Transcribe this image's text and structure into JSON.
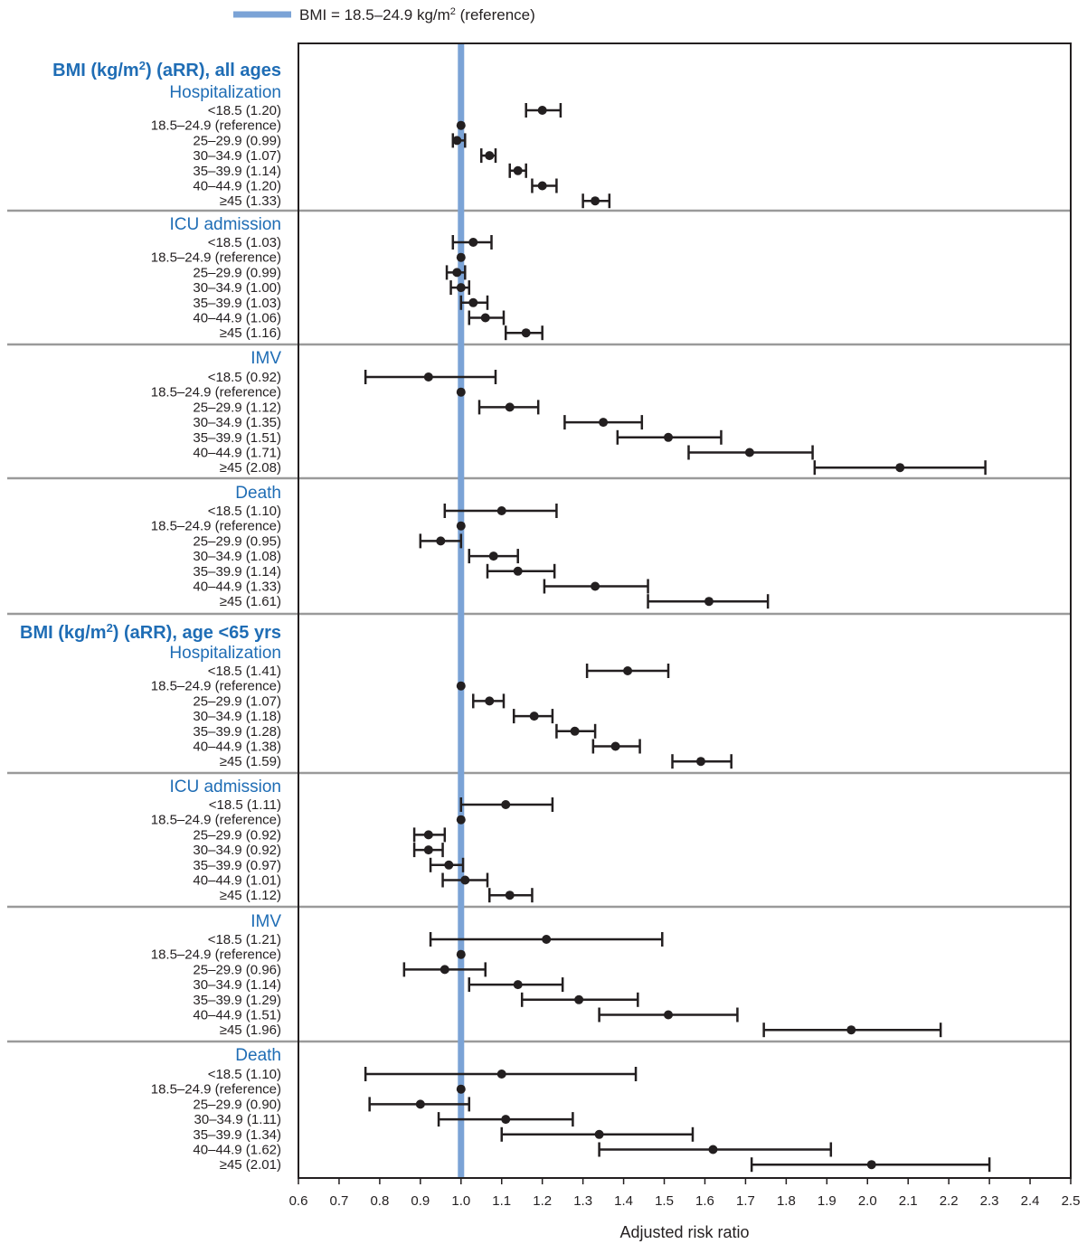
{
  "colors": {
    "reference_line": "#7ba3d6",
    "panel_heading": "#1f6db5",
    "separator": "#9a9a9a",
    "marker": "#231f20"
  },
  "legend": {
    "line_label_main": "BMI = 18.5–24.9 kg/m",
    "line_label_sup": "2",
    "line_label_end": " (reference)"
  },
  "chart_data": {
    "type": "scatter",
    "subtype": "forest-plot",
    "xlabel": "Adjusted risk ratio",
    "xlim": [
      0.6,
      2.5
    ],
    "x_ticks": [
      "0.6",
      "0.7",
      "0.8",
      "0.9",
      "1.0",
      "1.1",
      "1.2",
      "1.3",
      "1.4",
      "1.5",
      "1.6",
      "1.7",
      "1.8",
      "1.9",
      "2.0",
      "2.1",
      "2.2",
      "2.3",
      "2.4",
      "2.5"
    ],
    "reference_value": 1.0,
    "groups": [
      {
        "title_main": "BMI (kg/m",
        "title_sup": "2",
        "title_end": ") (aRR), all ages",
        "outcomes": [
          {
            "name": "Hospitalization",
            "rows": [
              {
                "label": "<18.5 (1.20)",
                "est": 1.2,
                "lo": 1.16,
                "hi": 1.245
              },
              {
                "label": "18.5–24.9 (reference)",
                "est": 1.0,
                "lo": 1.0,
                "hi": 1.0
              },
              {
                "label": "25–29.9 (0.99)",
                "est": 0.99,
                "lo": 0.98,
                "hi": 1.01
              },
              {
                "label": "30–34.9 (1.07)",
                "est": 1.07,
                "lo": 1.05,
                "hi": 1.085
              },
              {
                "label": "35–39.9 (1.14)",
                "est": 1.14,
                "lo": 1.12,
                "hi": 1.16
              },
              {
                "label": "40–44.9 (1.20)",
                "est": 1.2,
                "lo": 1.175,
                "hi": 1.235
              },
              {
                "label": "≥45 (1.33)",
                "est": 1.33,
                "lo": 1.3,
                "hi": 1.365
              }
            ]
          },
          {
            "name": "ICU admission",
            "rows": [
              {
                "label": "<18.5 (1.03)",
                "est": 1.03,
                "lo": 0.98,
                "hi": 1.075
              },
              {
                "label": "18.5–24.9 (reference)",
                "est": 1.0,
                "lo": 1.0,
                "hi": 1.0
              },
              {
                "label": "25–29.9 (0.99)",
                "est": 0.99,
                "lo": 0.965,
                "hi": 1.01
              },
              {
                "label": "30–34.9 (1.00)",
                "est": 1.0,
                "lo": 0.975,
                "hi": 1.02
              },
              {
                "label": "35–39.9 (1.03)",
                "est": 1.03,
                "lo": 1.0,
                "hi": 1.065
              },
              {
                "label": "40–44.9 (1.06)",
                "est": 1.06,
                "lo": 1.02,
                "hi": 1.105
              },
              {
                "label": "≥45 (1.16)",
                "est": 1.16,
                "lo": 1.11,
                "hi": 1.2
              }
            ]
          },
          {
            "name": "IMV",
            "rows": [
              {
                "label": "<18.5 (0.92)",
                "est": 0.92,
                "lo": 0.765,
                "hi": 1.085
              },
              {
                "label": "18.5–24.9 (reference)",
                "est": 1.0,
                "lo": 1.0,
                "hi": 1.0
              },
              {
                "label": "25–29.9 (1.12)",
                "est": 1.12,
                "lo": 1.045,
                "hi": 1.19
              },
              {
                "label": "30–34.9 (1.35)",
                "est": 1.35,
                "lo": 1.255,
                "hi": 1.445
              },
              {
                "label": "35–39.9 (1.51)",
                "est": 1.51,
                "lo": 1.385,
                "hi": 1.64
              },
              {
                "label": "40–44.9 (1.71)",
                "est": 1.71,
                "lo": 1.56,
                "hi": 1.865
              },
              {
                "label": "≥45 (2.08)",
                "est": 2.08,
                "lo": 1.87,
                "hi": 2.29
              }
            ]
          },
          {
            "name": "Death",
            "rows": [
              {
                "label": "<18.5 (1.10)",
                "est": 1.1,
                "lo": 0.96,
                "hi": 1.235
              },
              {
                "label": "18.5–24.9 (reference)",
                "est": 1.0,
                "lo": 1.0,
                "hi": 1.0
              },
              {
                "label": "25–29.9 (0.95)",
                "est": 0.95,
                "lo": 0.9,
                "hi": 1.0
              },
              {
                "label": "30–34.9 (1.08)",
                "est": 1.08,
                "lo": 1.02,
                "hi": 1.14
              },
              {
                "label": "35–39.9 (1.14)",
                "est": 1.14,
                "lo": 1.065,
                "hi": 1.23
              },
              {
                "label": "40–44.9 (1.33)",
                "est": 1.33,
                "lo": 1.205,
                "hi": 1.46
              },
              {
                "label": "≥45 (1.61)",
                "est": 1.61,
                "lo": 1.46,
                "hi": 1.755
              }
            ]
          }
        ]
      },
      {
        "title_main": "BMI (kg/m",
        "title_sup": "2",
        "title_end": ") (aRR), age <65 yrs",
        "outcomes": [
          {
            "name": "Hospitalization",
            "rows": [
              {
                "label": "<18.5 (1.41)",
                "est": 1.41,
                "lo": 1.31,
                "hi": 1.51
              },
              {
                "label": "18.5–24.9 (reference)",
                "est": 1.0,
                "lo": 1.0,
                "hi": 1.0
              },
              {
                "label": "25–29.9 (1.07)",
                "est": 1.07,
                "lo": 1.03,
                "hi": 1.105
              },
              {
                "label": "30–34.9 (1.18)",
                "est": 1.18,
                "lo": 1.13,
                "hi": 1.225
              },
              {
                "label": "35–39.9 (1.28)",
                "est": 1.28,
                "lo": 1.235,
                "hi": 1.33
              },
              {
                "label": "40–44.9 (1.38)",
                "est": 1.38,
                "lo": 1.325,
                "hi": 1.44
              },
              {
                "label": "≥45 (1.59)",
                "est": 1.59,
                "lo": 1.52,
                "hi": 1.665
              }
            ]
          },
          {
            "name": "ICU admission",
            "rows": [
              {
                "label": "<18.5 (1.11)",
                "est": 1.11,
                "lo": 1.0,
                "hi": 1.225
              },
              {
                "label": "18.5–24.9 (reference)",
                "est": 1.0,
                "lo": 1.0,
                "hi": 1.0
              },
              {
                "label": "25–29.9 (0.92)",
                "est": 0.92,
                "lo": 0.885,
                "hi": 0.96
              },
              {
                "label": "30–34.9 (0.92)",
                "est": 0.92,
                "lo": 0.885,
                "hi": 0.955
              },
              {
                "label": "35–39.9 (0.97)",
                "est": 0.97,
                "lo": 0.925,
                "hi": 1.005
              },
              {
                "label": "40–44.9 (1.01)",
                "est": 1.01,
                "lo": 0.955,
                "hi": 1.065
              },
              {
                "label": "≥45 (1.12)",
                "est": 1.12,
                "lo": 1.07,
                "hi": 1.175
              }
            ]
          },
          {
            "name": "IMV",
            "rows": [
              {
                "label": "<18.5 (1.21)",
                "est": 1.21,
                "lo": 0.925,
                "hi": 1.495
              },
              {
                "label": "18.5–24.9 (reference)",
                "est": 1.0,
                "lo": 1.0,
                "hi": 1.0
              },
              {
                "label": "25–29.9 (0.96)",
                "est": 0.96,
                "lo": 0.86,
                "hi": 1.06
              },
              {
                "label": "30–34.9 (1.14)",
                "est": 1.14,
                "lo": 1.02,
                "hi": 1.25
              },
              {
                "label": "35–39.9 (1.29)",
                "est": 1.29,
                "lo": 1.15,
                "hi": 1.435
              },
              {
                "label": "40–44.9 (1.51)",
                "est": 1.51,
                "lo": 1.34,
                "hi": 1.68
              },
              {
                "label": "≥45 (1.96)",
                "est": 1.96,
                "lo": 1.745,
                "hi": 2.18
              }
            ]
          },
          {
            "name": "Death",
            "rows": [
              {
                "label": "<18.5 (1.10)",
                "est": 1.1,
                "lo": 0.765,
                "hi": 1.43
              },
              {
                "label": "18.5–24.9 (reference)",
                "est": 1.0,
                "lo": 1.0,
                "hi": 1.0
              },
              {
                "label": "25–29.9 (0.90)",
                "est": 0.9,
                "lo": 0.775,
                "hi": 1.02
              },
              {
                "label": "30–34.9 (1.11)",
                "est": 1.11,
                "lo": 0.945,
                "hi": 1.275
              },
              {
                "label": "35–39.9 (1.34)",
                "est": 1.34,
                "lo": 1.1,
                "hi": 1.57
              },
              {
                "label": "40–44.9 (1.62)",
                "est": 1.62,
                "lo": 1.34,
                "hi": 1.91
              },
              {
                "label": "≥45 (2.01)",
                "est": 2.01,
                "lo": 1.715,
                "hi": 2.3
              }
            ]
          }
        ]
      }
    ]
  }
}
